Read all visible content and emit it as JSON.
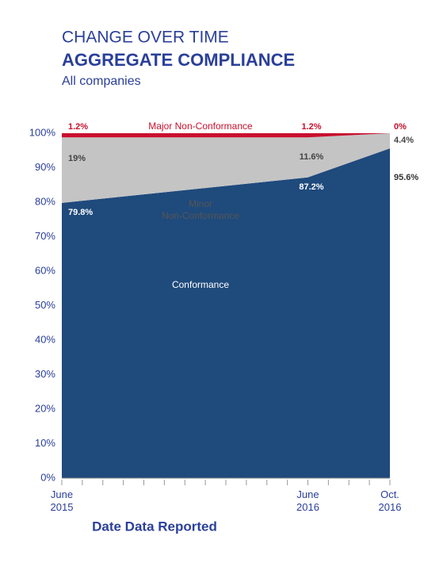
{
  "chart_data": {
    "type": "stacked_area",
    "title": "CHANGE OVER TIME",
    "subtitle": "AGGREGATE COMPLIANCE",
    "caption": "All companies",
    "x_label": "Date Data Reported",
    "x": [
      "2015-06",
      "2016-06",
      "2016-10"
    ],
    "xlim": [
      "2015-06",
      "2016-10"
    ],
    "xticks": [
      {
        "value": "2015-06",
        "label": "June 2015"
      },
      {
        "value": "2016-06",
        "label": "June 2016"
      },
      {
        "value": "2016-10",
        "label": "Oct. 2016"
      }
    ],
    "xminor_ticks": [
      "2015-07",
      "2015-08",
      "2015-09",
      "2015-10",
      "2015-11",
      "2015-12",
      "2016-01",
      "2016-02",
      "2016-03",
      "2016-04",
      "2016-05",
      "2016-07",
      "2016-08",
      "2016-09"
    ],
    "ylim": [
      0,
      100
    ],
    "yticks": [
      {
        "value": 0,
        "label": "0%"
      },
      {
        "value": 10,
        "label": "10%"
      },
      {
        "value": 20,
        "label": "20%"
      },
      {
        "value": 30,
        "label": "30%"
      },
      {
        "value": 40,
        "label": "40%"
      },
      {
        "value": 50,
        "label": "50%"
      },
      {
        "value": 60,
        "label": "60%"
      },
      {
        "value": 70,
        "label": "70%"
      },
      {
        "value": 80,
        "label": "80%"
      },
      {
        "value": 90,
        "label": "90%"
      },
      {
        "value": 100,
        "label": "100%"
      }
    ],
    "series": [
      {
        "name": "Conformance",
        "color": "#1f4a7c",
        "values": [
          79.8,
          87.2,
          95.6
        ],
        "value_labels": [
          "79.8%",
          "87.2%",
          "95.6%"
        ]
      },
      {
        "name": "Minor Non-Conformance",
        "color": "#c4c4c4",
        "values": [
          19,
          11.6,
          4.4
        ],
        "value_labels": [
          "19%",
          "11.6%",
          "4.4%"
        ]
      },
      {
        "name": "Major Non-Conformance",
        "color": "#c8102e",
        "values": [
          1.2,
          1.2,
          0
        ],
        "value_labels": [
          "1.2%",
          "1.2%",
          "0%"
        ]
      }
    ]
  }
}
